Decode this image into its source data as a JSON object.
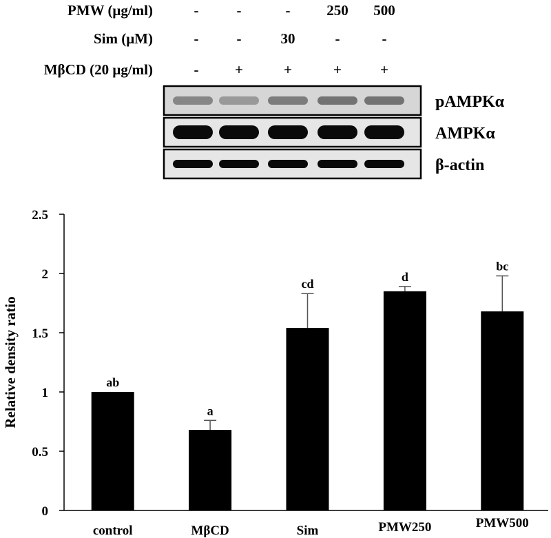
{
  "treatment_table": {
    "rows": [
      {
        "label": "PMW (μg/ml)",
        "values": [
          "-",
          "-",
          "-",
          "250",
          "500"
        ]
      },
      {
        "label": "Sim (μM)",
        "values": [
          "-",
          "-",
          "30",
          "-",
          "-"
        ]
      },
      {
        "label": "MβCD (20 μg/ml)",
        "values": [
          "-",
          "+",
          "+",
          "+",
          "+"
        ]
      }
    ]
  },
  "blot": {
    "bands": [
      {
        "label": "pAMPKα",
        "intensity": [
          0.35,
          0.25,
          0.4,
          0.45,
          0.45
        ]
      },
      {
        "label": "AMPKα",
        "intensity": [
          1,
          1,
          1,
          1,
          1
        ]
      },
      {
        "label": "β-actin",
        "intensity": [
          1,
          1,
          1,
          1,
          1
        ]
      }
    ]
  },
  "chart_data": {
    "type": "bar",
    "categories": [
      "control",
      "MβCD",
      "Sim",
      "PMW250",
      "PMW500"
    ],
    "values": [
      1.0,
      0.68,
      1.54,
      1.85,
      1.68
    ],
    "errors": [
      0.0,
      0.08,
      0.29,
      0.04,
      0.3
    ],
    "annotations": [
      "ab",
      "a",
      "cd",
      "d",
      "bc"
    ],
    "ylabel": "Relative density ratio",
    "xlabel": "",
    "ylim": [
      0,
      2.5
    ],
    "yticks": [
      0,
      0.5,
      1,
      1.5,
      2,
      2.5
    ],
    "ytick_labels": [
      "0",
      "0.5",
      "1",
      "1.5",
      "2",
      "2.5"
    ],
    "bar_color": "#000000",
    "grid": false,
    "legend": "none"
  }
}
